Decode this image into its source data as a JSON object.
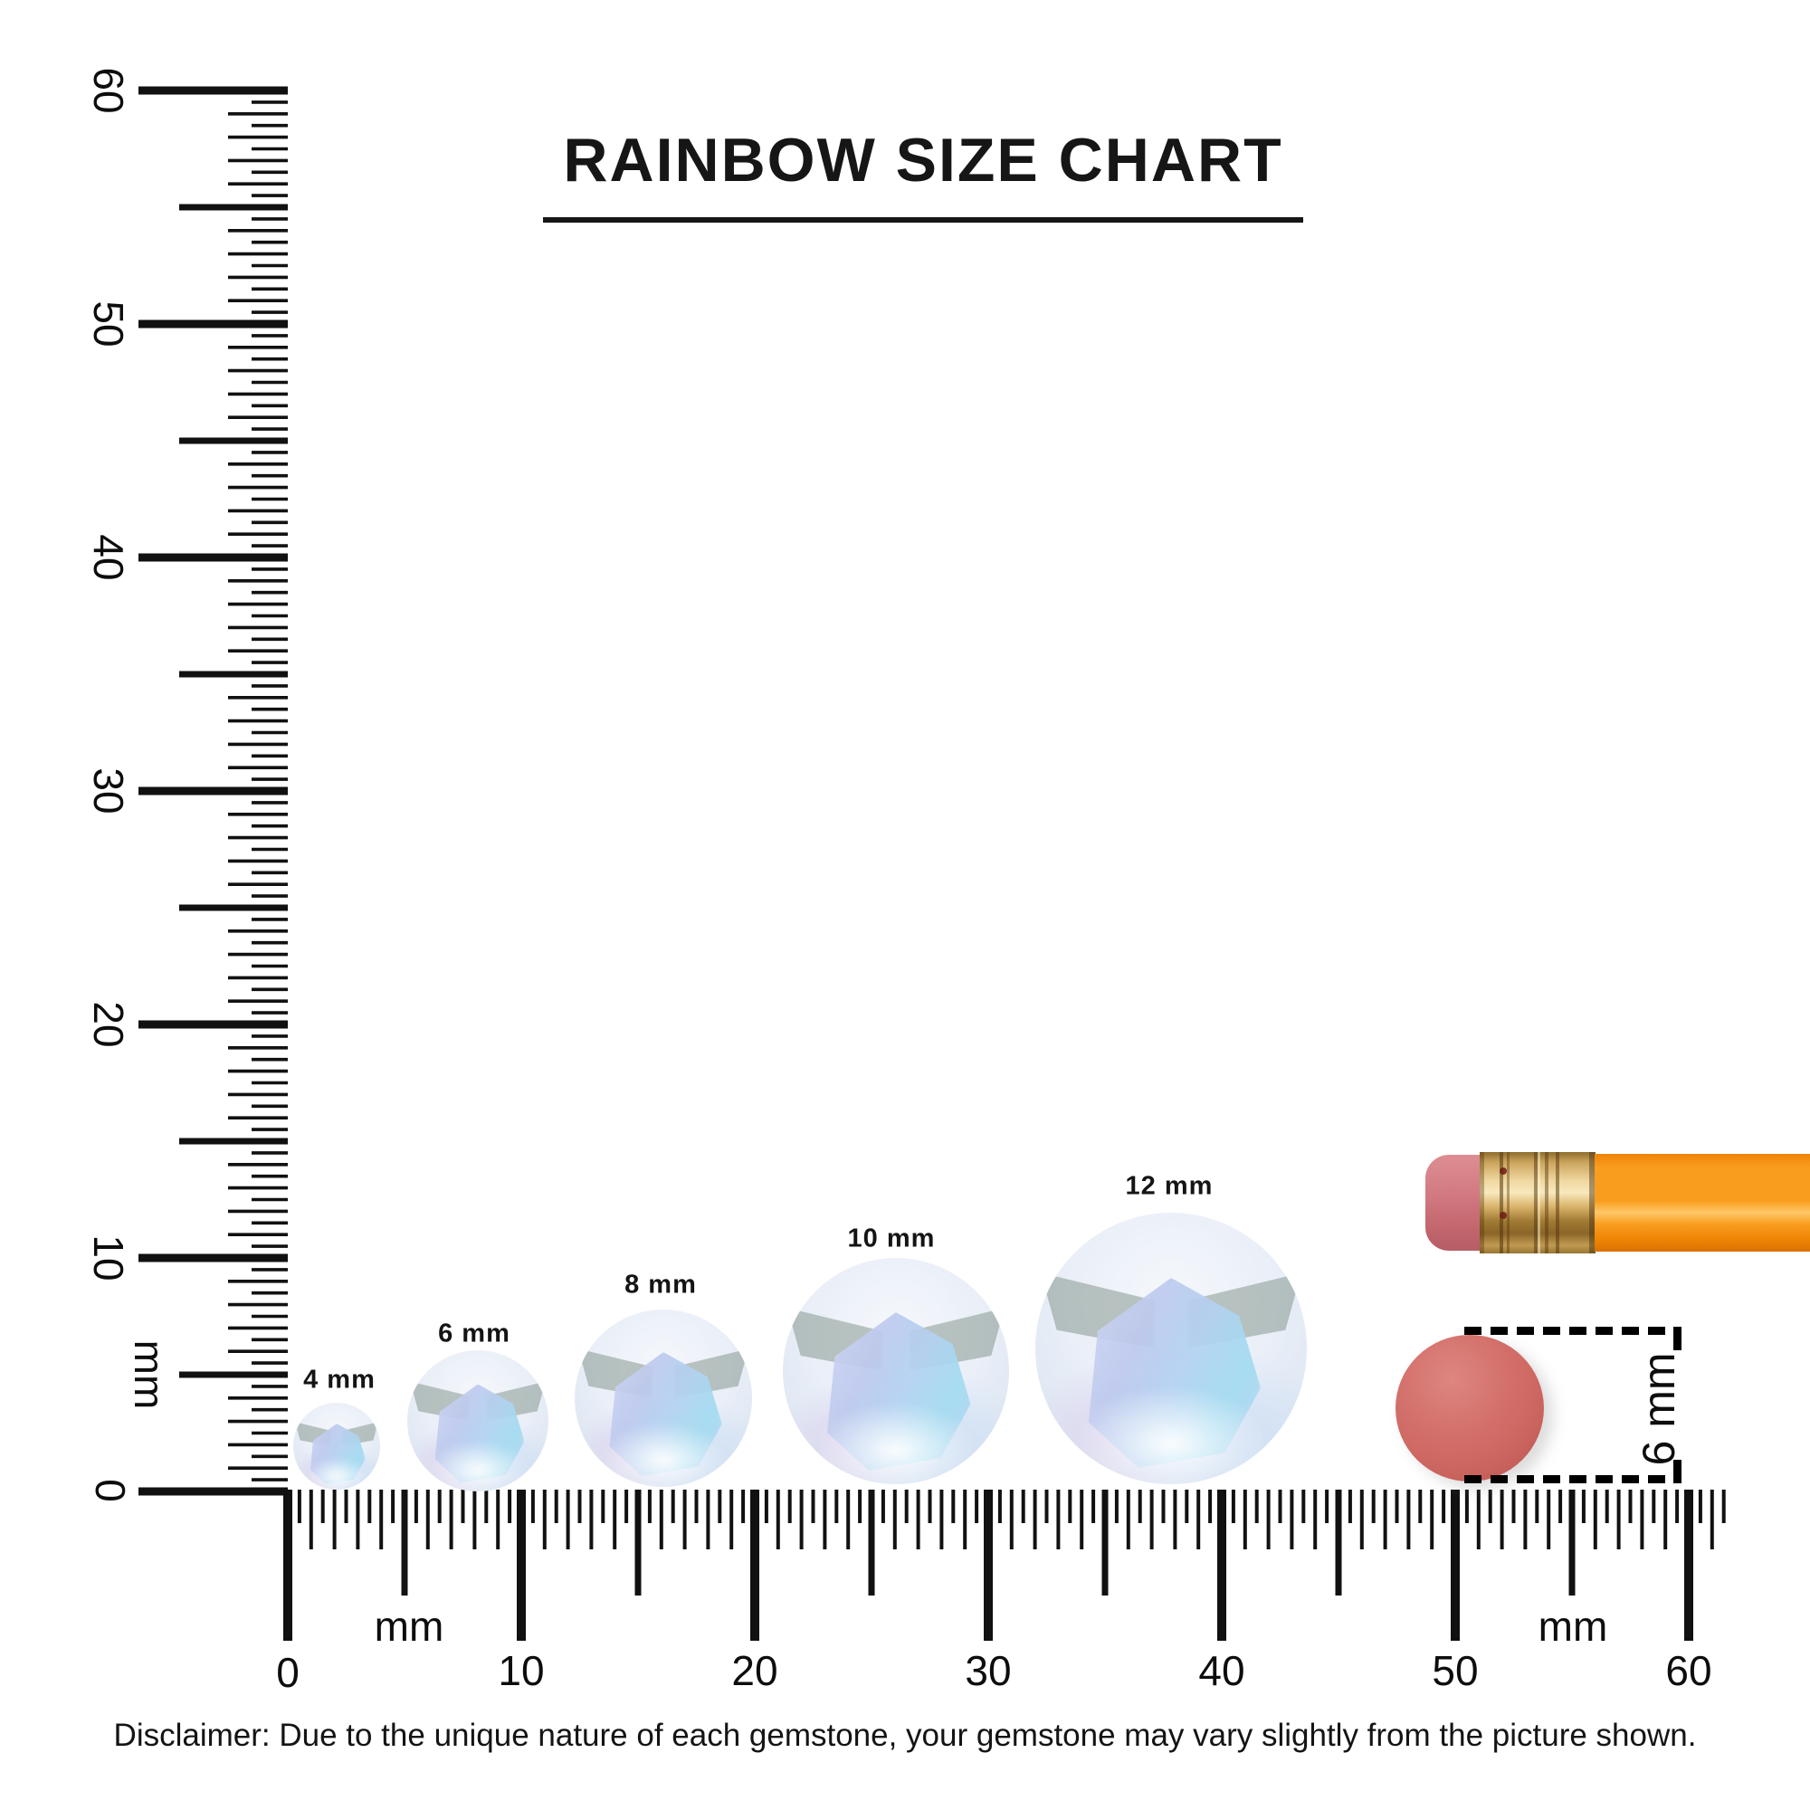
{
  "title": "RAINBOW SIZE CHART",
  "vertical_ruler": {
    "unit": "mm",
    "tick_labels": [
      "0",
      "10",
      "20",
      "30",
      "40",
      "50",
      "60"
    ]
  },
  "horizontal_ruler": {
    "unit": "mm",
    "tick_labels": [
      "0",
      "10",
      "20",
      "30",
      "40",
      "50",
      "60"
    ]
  },
  "gems": [
    {
      "label": "4 mm",
      "size_mm": 4
    },
    {
      "label": "6 mm",
      "size_mm": 6
    },
    {
      "label": "8 mm",
      "size_mm": 8
    },
    {
      "label": "10 mm",
      "size_mm": 10
    },
    {
      "label": "12 mm",
      "size_mm": 12
    }
  ],
  "eraser_measure": {
    "label": "6 mm"
  },
  "disclaimer": "Disclaimer: Due to the unique nature of each gemstone, your gemstone may vary slightly from the picture shown.",
  "colors": {
    "ink": "#111111",
    "gem_blue": "#aed3f2",
    "gem_lavender": "#d9c4ea",
    "eraser_red": "#cf6965",
    "pencil_orange": "#f8941c",
    "pencil_pink": "#d4767c",
    "ferrule_gold": "#d9b573"
  }
}
